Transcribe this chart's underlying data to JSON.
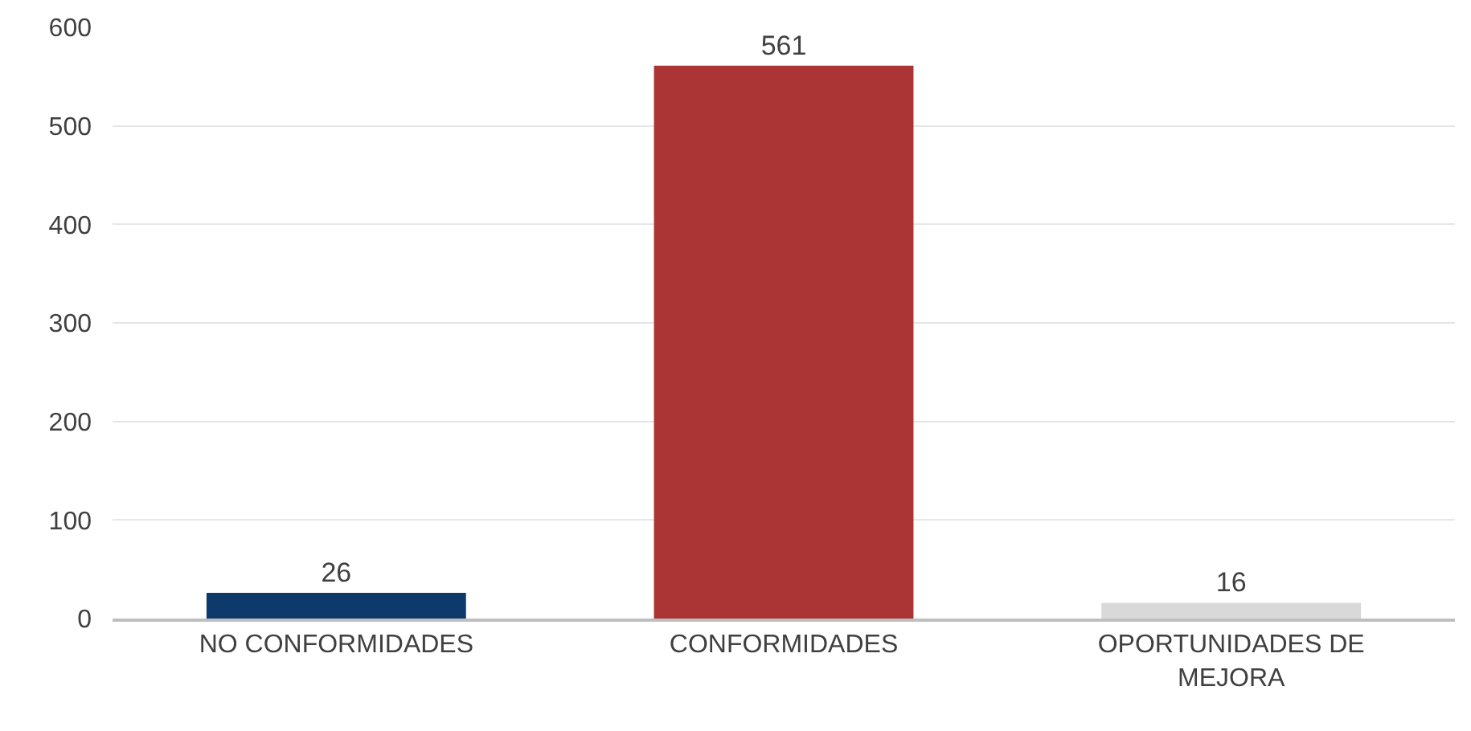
{
  "chart_data": {
    "type": "bar",
    "categories": [
      "NO CONFORMIDADES",
      "CONFORMIDADES",
      "OPORTUNIDADES DE MEJORA"
    ],
    "values": [
      26,
      561,
      16
    ],
    "colors": [
      "#0d3a6b",
      "#ab3535",
      "#d9d9d9"
    ],
    "ylim": [
      0,
      600
    ],
    "yticks": [
      0,
      100,
      200,
      300,
      400,
      500,
      600
    ],
    "grid": "y",
    "data_labels": true
  }
}
